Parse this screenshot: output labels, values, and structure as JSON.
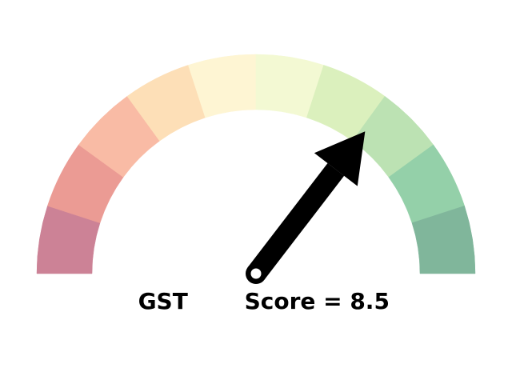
{
  "chart_data": {
    "type": "gauge",
    "label_prefix": "GST",
    "label_text": "Score = 8.5",
    "value": 8.5,
    "range": [
      0,
      12
    ],
    "segment_colors": [
      "#cc8296",
      "#eb9b94",
      "#f9bba5",
      "#fddfb7",
      "#fef5d3",
      "#f3f9d3",
      "#dbf0bd",
      "#bce2b3",
      "#94d0a9",
      "#80b69b"
    ],
    "needle_color": "#000000",
    "grid": false
  }
}
